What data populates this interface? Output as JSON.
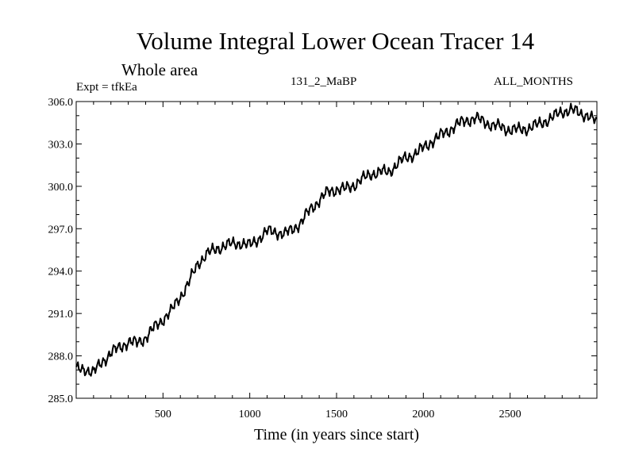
{
  "header": {
    "title": "Volume Integral Lower Ocean Tracer 14",
    "subtitle": "Whole area",
    "expt_label": "Expt = tfkEa",
    "run_label": "131_2_MaBP",
    "season_label": "ALL_MONTHS"
  },
  "chart_data": {
    "type": "line",
    "title": "Volume Integral Lower Ocean Tracer 14",
    "subtitle": "Whole area",
    "xlabel": "Time (in years since start)",
    "ylabel": "",
    "xlim": [
      0,
      3000
    ],
    "ylim": [
      285.0,
      306.0
    ],
    "x_ticks": [
      500,
      1000,
      1500,
      2000,
      2500
    ],
    "x_tick_labels": [
      "500",
      "1000",
      "1500",
      "2000",
      "2500"
    ],
    "y_ticks": [
      285.0,
      288.0,
      291.0,
      294.0,
      297.0,
      300.0,
      303.0,
      306.0
    ],
    "y_tick_labels": [
      "285.0",
      "288.0",
      "291.0",
      "294.0",
      "297.0",
      "300.0",
      "303.0",
      "306.0"
    ],
    "grid": false,
    "line_color": "#000000",
    "series": [
      {
        "x": [
          0,
          50,
          100,
          150,
          200,
          250,
          300,
          350,
          400,
          450,
          500,
          550,
          600,
          650,
          700,
          750,
          800,
          850,
          900,
          950,
          1000,
          1050,
          1100,
          1150,
          1200,
          1250,
          1300,
          1350,
          1400,
          1450,
          1500,
          1550,
          1600,
          1650,
          1700,
          1750,
          1800,
          1850,
          1900,
          1950,
          2000,
          2050,
          2100,
          2150,
          2200,
          2250,
          2300,
          2350,
          2400,
          2450,
          2500,
          2550,
          2600,
          2650,
          2700,
          2750,
          2800,
          2850,
          2900,
          2950,
          3000
        ],
        "values": [
          287.0,
          287.1,
          286.8,
          287.6,
          288.2,
          288.6,
          289.0,
          288.9,
          289.3,
          290.0,
          290.6,
          291.2,
          292.2,
          293.2,
          294.5,
          295.2,
          295.5,
          295.8,
          295.9,
          296.0,
          295.8,
          296.3,
          296.8,
          296.8,
          296.6,
          297.0,
          297.5,
          298.4,
          299.0,
          299.6,
          299.8,
          299.8,
          300.1,
          300.5,
          300.9,
          301.0,
          301.0,
          301.6,
          302.0,
          302.3,
          302.7,
          303.2,
          303.6,
          304.0,
          304.4,
          304.7,
          304.8,
          304.6,
          304.3,
          304.2,
          304.0,
          304.0,
          304.1,
          304.3,
          304.6,
          304.9,
          305.3,
          305.4,
          305.2,
          305.0,
          304.5
        ]
      }
    ]
  }
}
